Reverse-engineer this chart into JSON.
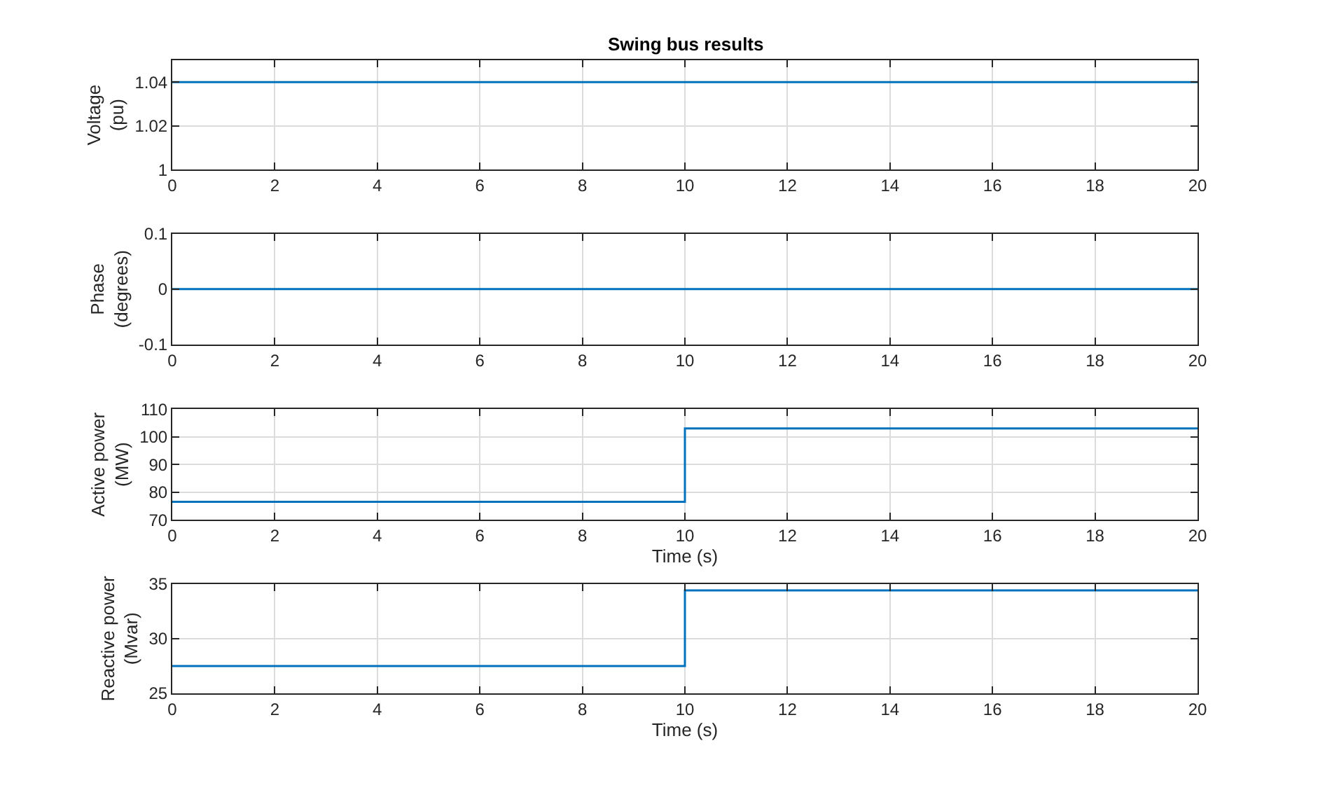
{
  "chart_data": [
    {
      "type": "step",
      "title": "Swing bus results",
      "ylabel": "Voltage\n(pu)",
      "x": [
        0,
        10,
        20
      ],
      "series": [
        {
          "color": "#0072bd",
          "values": [
            1.04,
            1.04,
            1.04
          ]
        }
      ],
      "xlim": [
        0,
        20
      ],
      "xticks": [
        0,
        2,
        4,
        6,
        8,
        10,
        12,
        14,
        16,
        18,
        20
      ],
      "ylim": [
        1,
        1.05
      ],
      "yticks": [
        1,
        1.02,
        1.04
      ],
      "grid": true
    },
    {
      "type": "step",
      "ylabel": "Phase\n(degrees)",
      "x": [
        0,
        10,
        20
      ],
      "series": [
        {
          "color": "#0072bd",
          "values": [
            0,
            0,
            0
          ]
        }
      ],
      "xlim": [
        0,
        20
      ],
      "xticks": [
        0,
        2,
        4,
        6,
        8,
        10,
        12,
        14,
        16,
        18,
        20
      ],
      "ylim": [
        -0.1,
        0.1
      ],
      "yticks": [
        -0.1,
        0,
        0.1
      ],
      "grid": true
    },
    {
      "type": "step",
      "xlabel": "Time (s)",
      "ylabel": "Active power\n(MW)",
      "x": [
        0,
        10,
        20
      ],
      "series": [
        {
          "color": "#0072bd",
          "values": [
            76.5,
            103,
            103
          ]
        }
      ],
      "xlim": [
        0,
        20
      ],
      "xticks": [
        0,
        2,
        4,
        6,
        8,
        10,
        12,
        14,
        16,
        18,
        20
      ],
      "ylim": [
        70,
        110
      ],
      "yticks": [
        70,
        80,
        90,
        100,
        110
      ],
      "grid": true
    },
    {
      "type": "step",
      "xlabel": "Time (s)",
      "ylabel": "Reactive power\n(Mvar)",
      "x": [
        0,
        10,
        20
      ],
      "series": [
        {
          "color": "#0072bd",
          "values": [
            27.5,
            34.4,
            34.4
          ]
        }
      ],
      "xlim": [
        0,
        20
      ],
      "xticks": [
        0,
        2,
        4,
        6,
        8,
        10,
        12,
        14,
        16,
        18,
        20
      ],
      "ylim": [
        25,
        35
      ],
      "yticks": [
        25,
        30,
        35
      ],
      "grid": true
    }
  ]
}
